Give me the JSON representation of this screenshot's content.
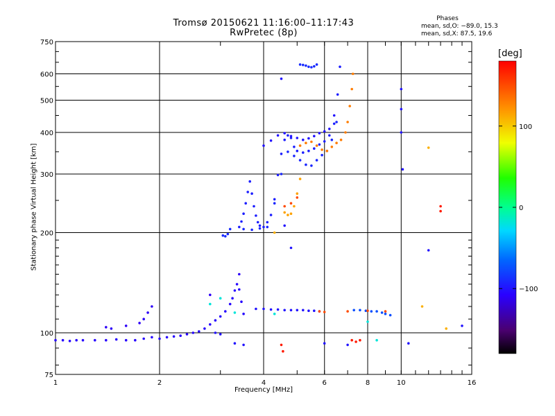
{
  "chart_data": {
    "type": "scatter",
    "title": "Tromsø 20150621 11:16:00–11:17:43",
    "subtitle": "RwPretec (8p)",
    "xlabel": "Frequency [MHz]",
    "ylabel": "Stationary phase Virtual Height [km]",
    "x_scale": "log",
    "y_scale": "log",
    "xlim": [
      1,
      16
    ],
    "ylim": [
      75,
      750
    ],
    "x_ticks": [
      1,
      2,
      4,
      6,
      8,
      10,
      16
    ],
    "x_tick_labels": [
      "1",
      "2",
      "4",
      "6",
      "8",
      "10",
      "16"
    ],
    "y_ticks": [
      75,
      100,
      200,
      300,
      400,
      500,
      600,
      750
    ],
    "y_tick_labels": [
      "75",
      "100",
      "200",
      "300",
      "400",
      "500",
      "600",
      "750"
    ],
    "x_grid": [
      2,
      4,
      6,
      8,
      10
    ],
    "y_grid": [
      100,
      200,
      300,
      400,
      500,
      600
    ],
    "grid": true,
    "colorbar": {
      "label": "[deg]",
      "range": [
        -180,
        180
      ],
      "ticks": [
        100,
        0,
        -100
      ],
      "tick_labels": [
        "100",
        "0",
        "−100"
      ]
    },
    "stats": {
      "header": "Phases",
      "line1": "mean, sd,O: −89.0, 15.3",
      "line2": "mean, sd,X:  87.5, 19.6"
    },
    "traces": [
      {
        "phase": -105,
        "points": [
          [
            1.0,
            95
          ],
          [
            1.05,
            95
          ],
          [
            1.1,
            94.5
          ],
          [
            1.15,
            95
          ],
          [
            1.2,
            95
          ],
          [
            1.3,
            95
          ],
          [
            1.4,
            95
          ],
          [
            1.5,
            95.5
          ],
          [
            1.6,
            95
          ],
          [
            1.7,
            95
          ],
          [
            1.8,
            96
          ],
          [
            1.9,
            97
          ],
          [
            2.0,
            96
          ],
          [
            2.1,
            97
          ],
          [
            2.2,
            97.5
          ],
          [
            2.3,
            98
          ],
          [
            2.4,
            99
          ],
          [
            2.5,
            100
          ],
          [
            2.6,
            101
          ],
          [
            2.7,
            103
          ],
          [
            2.8,
            106
          ],
          [
            2.9,
            109
          ],
          [
            3.0,
            112
          ],
          [
            3.1,
            116
          ],
          [
            3.2,
            122
          ],
          [
            3.25,
            127
          ],
          [
            3.3,
            134
          ],
          [
            3.35,
            140
          ],
          [
            3.4,
            135
          ],
          [
            3.45,
            124
          ],
          [
            3.5,
            114
          ]
        ]
      },
      {
        "phase": -110,
        "points": [
          [
            1.4,
            104
          ],
          [
            1.45,
            103
          ],
          [
            1.6,
            105
          ],
          [
            1.75,
            107
          ],
          [
            1.8,
            110
          ],
          [
            1.85,
            115
          ],
          [
            1.9,
            120
          ],
          [
            2.8,
            130
          ],
          [
            3.4,
            150
          ]
        ]
      },
      {
        "phase": -90,
        "points": [
          [
            3.05,
            196
          ],
          [
            3.1,
            195
          ],
          [
            3.15,
            198
          ],
          [
            3.2,
            205
          ]
        ]
      },
      {
        "phase": -95,
        "points": [
          [
            3.4,
            208
          ],
          [
            3.45,
            216
          ],
          [
            3.5,
            228
          ],
          [
            3.55,
            245
          ],
          [
            3.6,
            265
          ],
          [
            3.65,
            285
          ],
          [
            3.7,
            262
          ],
          [
            3.75,
            240
          ],
          [
            3.8,
            225
          ],
          [
            3.85,
            215
          ],
          [
            3.9,
            210
          ],
          [
            4.0,
            208
          ],
          [
            4.1,
            215
          ],
          [
            4.2,
            226
          ],
          [
            4.3,
            252
          ],
          [
            4.4,
            298
          ],
          [
            4.5,
            345
          ],
          [
            4.6,
            380
          ],
          [
            4.7,
            392
          ],
          [
            4.8,
            385
          ],
          [
            4.9,
            362
          ],
          [
            5.0,
            352
          ],
          [
            5.2,
            348
          ],
          [
            5.4,
            352
          ],
          [
            5.6,
            358
          ],
          [
            5.8,
            368
          ],
          [
            6.0,
            376
          ],
          [
            6.2,
            392
          ],
          [
            6.4,
            425
          ],
          [
            6.55,
            520
          ],
          [
            6.65,
            630
          ]
        ]
      },
      {
        "phase": -92,
        "points": [
          [
            3.5,
            205
          ],
          [
            3.7,
            204
          ],
          [
            3.9,
            206
          ],
          [
            4.1,
            208
          ],
          [
            4.3,
            245
          ],
          [
            4.5,
            300
          ],
          [
            4.7,
            350
          ],
          [
            4.9,
            340
          ],
          [
            5.1,
            330
          ],
          [
            5.3,
            320
          ],
          [
            5.5,
            318
          ],
          [
            5.7,
            330
          ],
          [
            5.9,
            342
          ],
          [
            6.1,
            352
          ],
          [
            6.3,
            380
          ],
          [
            6.5,
            430
          ]
        ]
      },
      {
        "phase": -100,
        "points": [
          [
            4.0,
            365
          ],
          [
            4.2,
            378
          ],
          [
            4.4,
            392
          ],
          [
            4.6,
            398
          ],
          [
            4.8,
            390
          ],
          [
            5.0,
            385
          ],
          [
            5.2,
            380
          ],
          [
            5.4,
            384
          ],
          [
            5.6,
            390
          ],
          [
            5.8,
            398
          ],
          [
            6.0,
            403
          ],
          [
            6.2,
            410
          ],
          [
            6.4,
            450
          ]
        ]
      },
      {
        "phase": -90,
        "points": [
          [
            5.1,
            640
          ],
          [
            5.2,
            638
          ],
          [
            5.3,
            635
          ],
          [
            5.4,
            630
          ],
          [
            5.5,
            628
          ],
          [
            5.6,
            632
          ],
          [
            5.7,
            640
          ]
        ]
      },
      {
        "phase": 130,
        "points": [
          [
            5.1,
            365
          ],
          [
            5.3,
            372
          ],
          [
            5.5,
            375
          ],
          [
            5.7,
            365
          ],
          [
            5.9,
            355
          ],
          [
            6.1,
            352
          ],
          [
            6.3,
            362
          ],
          [
            6.5,
            372
          ],
          [
            6.7,
            380
          ],
          [
            6.9,
            400
          ],
          [
            7.0,
            430
          ],
          [
            7.1,
            480
          ],
          [
            7.2,
            540
          ],
          [
            7.25,
            600
          ]
        ]
      },
      {
        "phase": 115,
        "points": [
          [
            4.6,
            230
          ],
          [
            4.7,
            226
          ],
          [
            4.8,
            228
          ],
          [
            4.9,
            240
          ],
          [
            5.0,
            262
          ],
          [
            5.1,
            290
          ]
        ]
      },
      {
        "phase": 150,
        "points": [
          [
            4.6,
            240
          ],
          [
            4.8,
            245
          ],
          [
            5.0,
            255
          ]
        ]
      },
      {
        "phase": -100,
        "points": [
          [
            3.8,
            118
          ],
          [
            4.0,
            118
          ],
          [
            4.2,
            117.5
          ],
          [
            4.4,
            117.5
          ],
          [
            4.6,
            117
          ],
          [
            4.8,
            117
          ],
          [
            5.0,
            117
          ],
          [
            5.2,
            117
          ],
          [
            5.4,
            116.5
          ],
          [
            5.6,
            116.5
          ],
          [
            5.8,
            116
          ]
        ]
      },
      {
        "phase": -75,
        "points": [
          [
            7.3,
            117
          ],
          [
            7.6,
            117
          ],
          [
            7.9,
            116.5
          ],
          [
            8.2,
            116
          ],
          [
            8.5,
            116
          ],
          [
            8.8,
            115
          ],
          [
            9.0,
            114
          ],
          [
            9.3,
            113
          ]
        ]
      },
      {
        "phase": 150,
        "points": [
          [
            5.8,
            116
          ],
          [
            6.0,
            115.5
          ],
          [
            7.0,
            116
          ],
          [
            8.0,
            116.5
          ],
          [
            9.0,
            116
          ]
        ]
      },
      {
        "phase": 170,
        "points": [
          [
            4.5,
            92
          ],
          [
            4.55,
            88
          ],
          [
            7.2,
            95
          ],
          [
            7.4,
            94
          ],
          [
            7.6,
            95
          ]
        ]
      },
      {
        "phase": -100,
        "points": [
          [
            2.9,
            100
          ],
          [
            3.0,
            99
          ],
          [
            3.3,
            93
          ],
          [
            3.5,
            92
          ],
          [
            6.0,
            93
          ],
          [
            7.0,
            92
          ]
        ]
      },
      {
        "phase": -20,
        "points": [
          [
            2.8,
            122
          ],
          [
            3.0,
            127
          ],
          [
            3.3,
            115
          ],
          [
            4.3,
            114
          ],
          [
            8.0,
            108
          ],
          [
            8.5,
            95
          ]
        ]
      },
      {
        "phase": -100,
        "points": [
          [
            4.5,
            580
          ],
          [
            4.6,
            210
          ],
          [
            4.8,
            180
          ],
          [
            10.0,
            540
          ],
          [
            10.0,
            470
          ],
          [
            10.0,
            400
          ],
          [
            10.1,
            310
          ],
          [
            10.5,
            93
          ]
        ]
      },
      {
        "phase": 110,
        "points": [
          [
            12.0,
            360
          ],
          [
            11.5,
            120
          ],
          [
            13.5,
            103
          ],
          [
            4.3,
            200
          ]
        ]
      },
      {
        "phase": 170,
        "points": [
          [
            13.0,
            240
          ],
          [
            13.0,
            232
          ]
        ]
      },
      {
        "phase": -100,
        "points": [
          [
            12.0,
            177
          ],
          [
            15.0,
            105
          ]
        ]
      }
    ]
  }
}
